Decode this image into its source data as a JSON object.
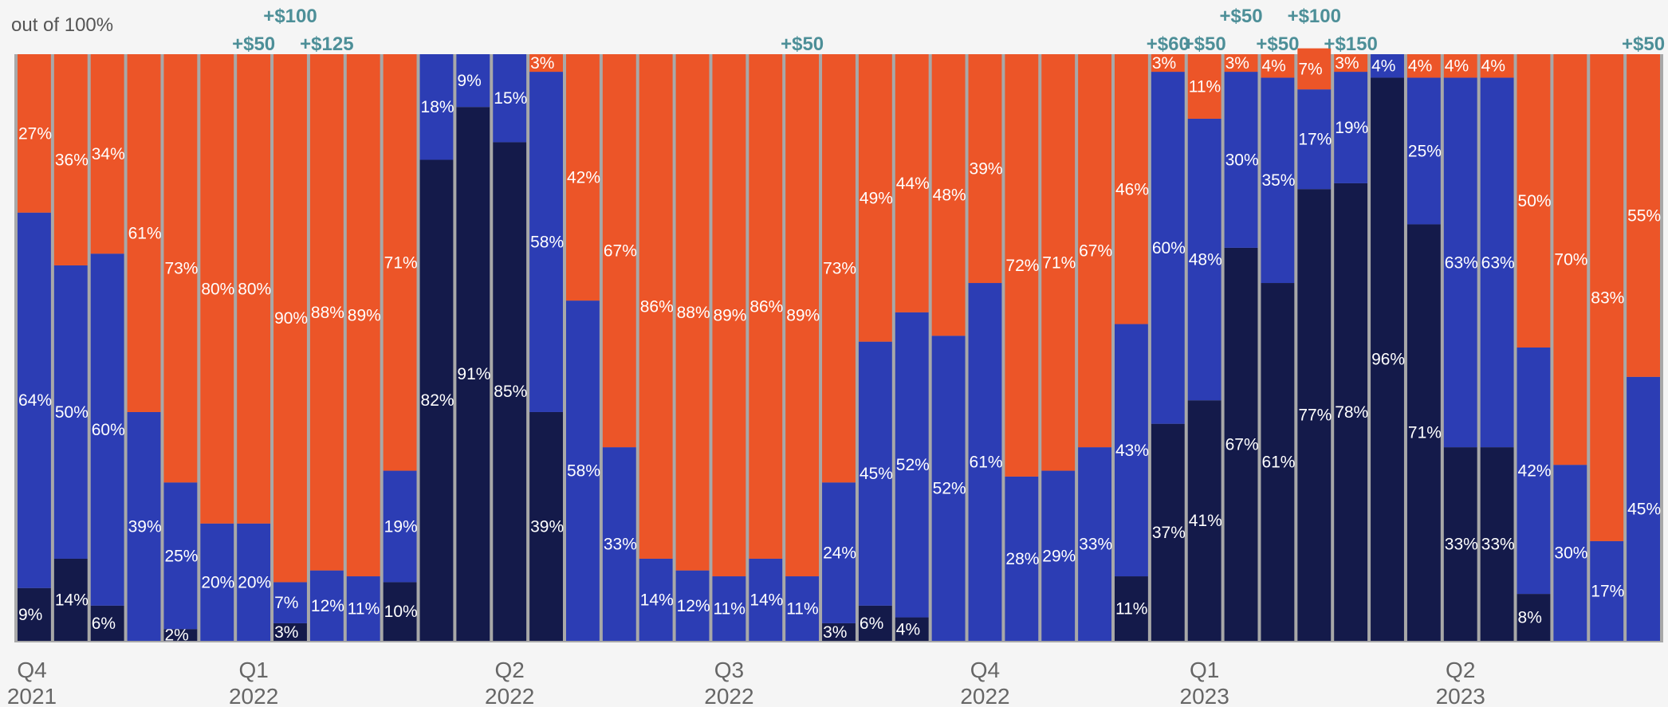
{
  "chart_data": {
    "type": "bar",
    "stacked": true,
    "normalized": true,
    "y_caption": "out of 100%",
    "ylim": [
      0,
      100
    ],
    "legend": "none",
    "grid": false,
    "colors": {
      "dark": "#141a4a",
      "blue": "#2c3db4",
      "orange": "#ec5528",
      "annotation": "#4d8f98",
      "separator": "#a8a8a8"
    },
    "series": [
      {
        "color_key": "dark",
        "values": [
          9,
          14,
          6,
          0,
          2,
          0,
          0,
          3,
          0,
          0,
          10,
          82,
          91,
          85,
          39,
          0,
          0,
          0,
          0,
          0,
          0,
          0,
          3,
          6,
          4,
          0,
          0,
          0,
          0,
          0,
          11,
          37,
          41,
          67,
          61,
          77,
          78,
          96,
          71,
          33,
          33,
          8,
          0,
          0,
          0
        ],
        "labels": [
          "9%",
          "14%",
          "6%",
          "",
          "2%",
          "",
          "",
          "3%",
          "",
          "",
          "10%",
          "82%",
          "91%",
          "85%",
          "39%",
          "",
          "",
          "",
          "",
          "",
          "",
          "",
          "3%",
          "6%",
          "4%",
          "",
          "",
          "",
          "",
          "",
          "11%",
          "37%",
          "41%",
          "67%",
          "61%",
          "77%",
          "78%",
          "96%",
          "71%",
          "33%",
          "33%",
          "8%",
          "",
          "",
          ""
        ]
      },
      {
        "color_key": "blue",
        "values": [
          64,
          50,
          60,
          39,
          25,
          20,
          20,
          7,
          12,
          11,
          19,
          18,
          9,
          15,
          58,
          58,
          33,
          14,
          12,
          11,
          14,
          11,
          24,
          45,
          52,
          52,
          61,
          28,
          29,
          33,
          43,
          60,
          48,
          30,
          35,
          17,
          19,
          4,
          25,
          63,
          63,
          42,
          30,
          17,
          45
        ],
        "labels": [
          "64%",
          "50%",
          "60%",
          "39%",
          "25%",
          "20%",
          "20%",
          "7%",
          "12%",
          "11%",
          "19%",
          "18%",
          "9%",
          "15%",
          "58%",
          "58%",
          "33%",
          "14%",
          "12%",
          "11%",
          "14%",
          "11%",
          "24%",
          "45%",
          "52%",
          "52%",
          "61%",
          "28%",
          "29%",
          "33%",
          "43%",
          "60%",
          "48%",
          "30%",
          "35%",
          "17%",
          "19%",
          "4%",
          "25%",
          "63%",
          "63%",
          "42%",
          "30%",
          "17%",
          "45%"
        ]
      },
      {
        "color_key": "orange",
        "values": [
          27,
          36,
          34,
          61,
          73,
          80,
          80,
          90,
          88,
          89,
          71,
          0,
          0,
          0,
          3,
          42,
          67,
          86,
          88,
          89,
          86,
          89,
          73,
          49,
          44,
          48,
          39,
          72,
          71,
          67,
          46,
          3,
          11,
          3,
          4,
          7,
          3,
          0,
          4,
          4,
          4,
          50,
          70,
          83,
          55
        ],
        "labels": [
          "27%",
          "36%",
          "34%",
          "61%",
          "73%",
          "80%",
          "80%",
          "90%",
          "88%",
          "89%",
          "71%",
          "",
          "",
          "",
          "3%",
          "42%",
          "67%",
          "86%",
          "88%",
          "89%",
          "86%",
          "89%",
          "73%",
          "49%",
          "44%",
          "48%",
          "39%",
          "72%",
          "71%",
          "67%",
          "46%",
          "3%",
          "11%",
          "3%",
          "4%",
          "7%",
          "3%",
          "",
          "4%",
          "4%",
          "4%",
          "50%",
          "70%",
          "83%",
          "55%"
        ]
      }
    ],
    "annotations": [
      {
        "bar": 6,
        "row": 1,
        "text": "+$50"
      },
      {
        "bar": 7,
        "row": 0,
        "text": "+$100"
      },
      {
        "bar": 8,
        "row": 1,
        "text": "+$125"
      },
      {
        "bar": 21,
        "row": 1,
        "text": "+$50"
      },
      {
        "bar": 31,
        "row": 1,
        "text": "+$60"
      },
      {
        "bar": 32,
        "row": 1,
        "text": "+$50"
      },
      {
        "bar": 33,
        "row": 0,
        "text": "+$50"
      },
      {
        "bar": 34,
        "row": 1,
        "text": "+$50"
      },
      {
        "bar": 35,
        "row": 0,
        "text": "+$100"
      },
      {
        "bar": 36,
        "row": 1,
        "text": "+$150"
      },
      {
        "bar": 44,
        "row": 1,
        "text": "+$50"
      }
    ],
    "quarter_ticks": [
      {
        "bar": 0,
        "label": [
          "Q4",
          "2021"
        ]
      },
      {
        "bar": 6,
        "label": [
          "Q1",
          "2022"
        ]
      },
      {
        "bar": 13,
        "label": [
          "Q2",
          "2022"
        ]
      },
      {
        "bar": 19,
        "label": [
          "Q3",
          "2022"
        ]
      },
      {
        "bar": 26,
        "label": [
          "Q4",
          "2022"
        ]
      },
      {
        "bar": 32,
        "label": [
          "Q1",
          "2023"
        ]
      },
      {
        "bar": 39,
        "label": [
          "Q2",
          "2023"
        ]
      }
    ]
  }
}
